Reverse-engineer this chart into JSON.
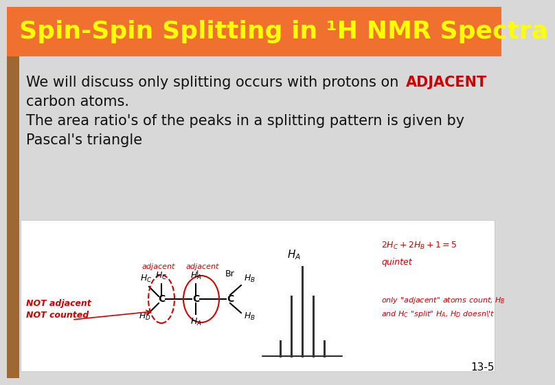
{
  "title": "Spin-Spin Splitting in ¹H NMR Spectra",
  "title_color": "#FFFF00",
  "title_bg_color": "#F07030",
  "bg_color": "#D8D8D8",
  "text_line1_normal": "We will discuss only splitting occurs with protons on ",
  "text_line1_bold": "ADJACENT",
  "text_line2": "carbon atoms.",
  "text_line3": "The area ratio's of the peaks in a splitting pattern is given by",
  "text_line4": "Pascal's triangle",
  "text_color": "#111111",
  "adjacent_color": "#CC0000",
  "page_number": "13-5",
  "title_fontsize": 26,
  "body_fontsize": 15,
  "left_strip_color": "#B87040",
  "white_panel_color": "#FFFFFF",
  "white_panel_edge": "#CCCCCC"
}
